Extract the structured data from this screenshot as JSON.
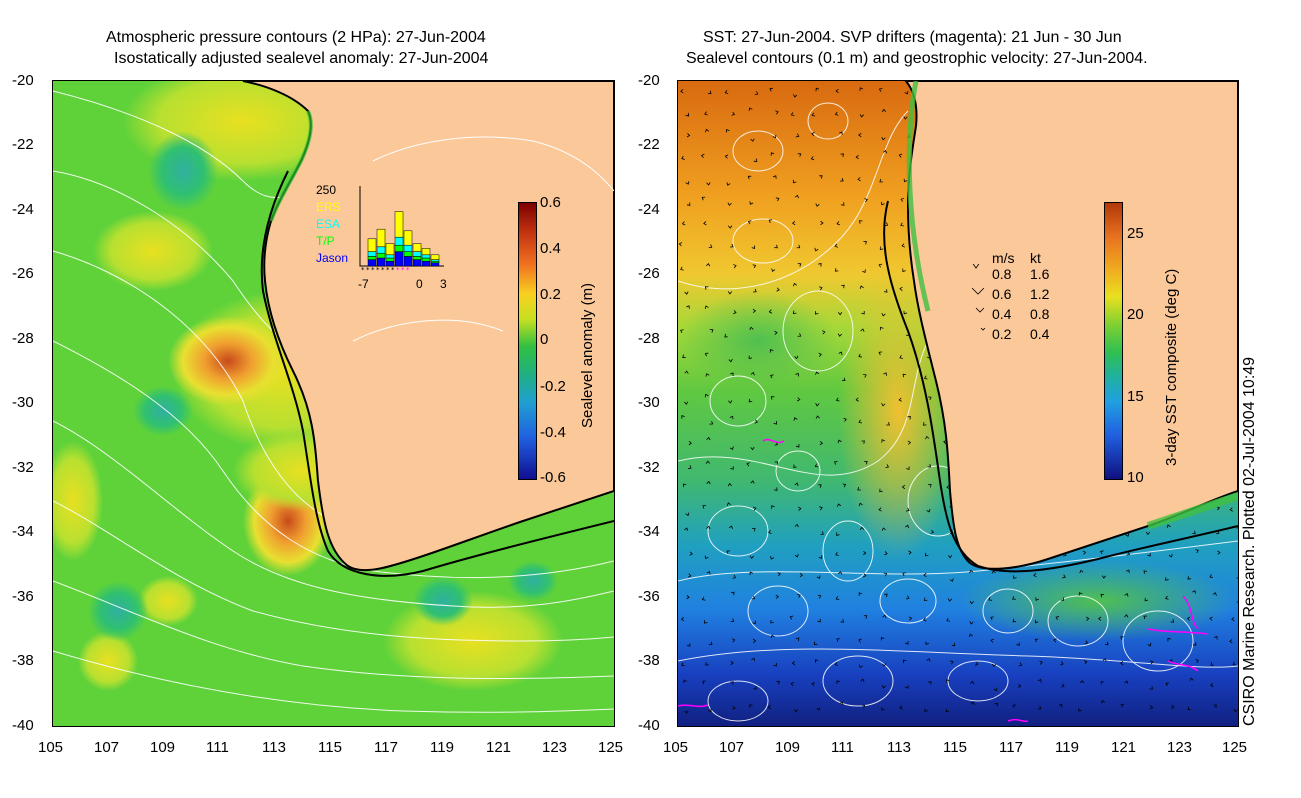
{
  "left_panel": {
    "title_line1": "Atmospheric pressure contours (2 HPa): 27-Jun-2004",
    "title_line2": "Isostatically adjusted sealevel anomaly: 27-Jun-2004",
    "y_ticks": [
      "-20",
      "-22",
      "-24",
      "-26",
      "-28",
      "-30",
      "-32",
      "-34",
      "-36",
      "-38",
      "-40"
    ],
    "x_ticks": [
      "105",
      "107",
      "109",
      "111",
      "113",
      "115",
      "117",
      "119",
      "121",
      "123",
      "125"
    ],
    "colorbar": {
      "label": "Sealevel anomaly (m)",
      "ticks": [
        "0.6",
        "0.4",
        "0.2",
        "0",
        "-0.2",
        "-0.4",
        "-0.6"
      ],
      "range": [
        -0.6,
        0.6
      ]
    },
    "inset": {
      "y_max_label": "250",
      "series_labels": [
        "ERS",
        "ESA",
        "T/P",
        "Jason"
      ],
      "series_colors": [
        "#ffff00",
        "#00ffff",
        "#00ff00",
        "#0000ff"
      ],
      "x_ticks": [
        "-7",
        "0",
        "3"
      ],
      "bars": [
        {
          "day": -5,
          "jason": 20,
          "tp": 10,
          "esa": 15,
          "ers": 40
        },
        {
          "day": -4,
          "jason": 25,
          "tp": 15,
          "esa": 20,
          "ers": 55
        },
        {
          "day": -3,
          "jason": 15,
          "tp": 10,
          "esa": 10,
          "ers": 35
        },
        {
          "day": -2,
          "jason": 45,
          "tp": 20,
          "esa": 25,
          "ers": 80
        },
        {
          "day": -1,
          "jason": 30,
          "tp": 15,
          "esa": 20,
          "ers": 45
        },
        {
          "day": 0,
          "jason": 20,
          "tp": 10,
          "esa": 15,
          "ers": 25
        },
        {
          "day": 1,
          "jason": 15,
          "tp": 10,
          "esa": 10,
          "ers": 20
        },
        {
          "day": 2,
          "jason": 10,
          "tp": 5,
          "esa": 5,
          "ers": 15
        }
      ]
    }
  },
  "right_panel": {
    "title_line1": "SST: 27-Jun-2004. SVP drifters (magenta): 21 Jun - 30 Jun",
    "title_line2": "Sealevel contours (0.1 m) and geostrophic velocity: 27-Jun-2004.",
    "y_ticks": [
      "-20",
      "-22",
      "-24",
      "-26",
      "-28",
      "-30",
      "-32",
      "-34",
      "-36",
      "-38",
      "-40"
    ],
    "x_ticks": [
      "105",
      "107",
      "109",
      "111",
      "113",
      "115",
      "117",
      "119",
      "121",
      "123",
      "125"
    ],
    "colorbar": {
      "label": "3-day SST composite (deg C)",
      "ticks": [
        "25",
        "20",
        "15",
        "10"
      ],
      "range": [
        10,
        27
      ]
    },
    "velocity_legend": {
      "header_ms": "m/s",
      "header_kt": "kt",
      "rows": [
        {
          "ms": "0.8",
          "kt": "1.6"
        },
        {
          "ms": "0.6",
          "kt": "1.2"
        },
        {
          "ms": "0.4",
          "kt": "0.8"
        },
        {
          "ms": "0.2",
          "kt": "0.4"
        }
      ]
    }
  },
  "credit": "CSIRO Marine Research. Plotted 02-Jul-2004 10:49",
  "colors": {
    "land": "#fbc89a",
    "coast": "#000000",
    "contour": "#ffffff",
    "drifter": "#ff00ff"
  }
}
